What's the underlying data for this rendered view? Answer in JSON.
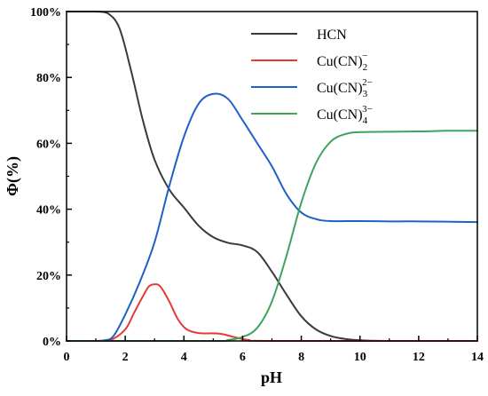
{
  "chart_data": {
    "type": "line",
    "xlabel": "pH",
    "ylabel": "Φ(%)",
    "xlim": [
      0,
      14
    ],
    "ylim": [
      0,
      100
    ],
    "x_ticks": [
      "0",
      "2",
      "4",
      "6",
      "8",
      "10",
      "12",
      "14"
    ],
    "y_ticks": [
      "0%",
      "20%",
      "40%",
      "60%",
      "80%",
      "100%"
    ],
    "grid": false,
    "legend_position": "top-right",
    "series": [
      {
        "name": "HCN",
        "name_base": "HCN",
        "name_sub": "",
        "name_sup": "",
        "color": "#3a3a3a",
        "points": [
          [
            0,
            100
          ],
          [
            1,
            100
          ],
          [
            1.4,
            99.5
          ],
          [
            1.8,
            95
          ],
          [
            2.2,
            82
          ],
          [
            2.6,
            67
          ],
          [
            3,
            55
          ],
          [
            3.5,
            46
          ],
          [
            4,
            40.5
          ],
          [
            4.5,
            35
          ],
          [
            5,
            31.5
          ],
          [
            5.5,
            29.8
          ],
          [
            6,
            29
          ],
          [
            6.5,
            27
          ],
          [
            7,
            21
          ],
          [
            7.5,
            14
          ],
          [
            8,
            7.5
          ],
          [
            8.5,
            3.5
          ],
          [
            9,
            1.5
          ],
          [
            9.5,
            0.6
          ],
          [
            10,
            0.2
          ],
          [
            11,
            0
          ],
          [
            14,
            0
          ]
        ]
      },
      {
        "name": "Cu(CN)2−",
        "name_base": "Cu(CN)",
        "name_sub": "2",
        "name_sup": "−",
        "color": "#e53935",
        "points": [
          [
            0,
            0
          ],
          [
            1,
            0
          ],
          [
            1.5,
            0.3
          ],
          [
            2,
            3.5
          ],
          [
            2.3,
            8.5
          ],
          [
            2.6,
            13.5
          ],
          [
            2.8,
            16.5
          ],
          [
            3,
            17.2
          ],
          [
            3.2,
            16.5
          ],
          [
            3.5,
            12
          ],
          [
            3.8,
            6.5
          ],
          [
            4.1,
            3.5
          ],
          [
            4.5,
            2.4
          ],
          [
            5,
            2.3
          ],
          [
            5.3,
            2.1
          ],
          [
            5.7,
            1.2
          ],
          [
            6.2,
            0.3
          ],
          [
            7,
            0
          ],
          [
            14,
            0
          ]
        ]
      },
      {
        "name": "Cu(CN)3 2−",
        "name_base": "Cu(CN)",
        "name_sub": "3",
        "name_sup": "2−",
        "color": "#1f60c8",
        "points": [
          [
            0,
            0
          ],
          [
            1,
            0
          ],
          [
            1.3,
            0.2
          ],
          [
            1.6,
            1.5
          ],
          [
            2,
            8
          ],
          [
            2.5,
            18
          ],
          [
            3,
            30
          ],
          [
            3.5,
            47
          ],
          [
            4,
            62
          ],
          [
            4.5,
            72
          ],
          [
            5,
            75
          ],
          [
            5.5,
            73.5
          ],
          [
            6,
            67
          ],
          [
            6.5,
            60
          ],
          [
            7,
            53
          ],
          [
            7.5,
            44.5
          ],
          [
            8,
            39
          ],
          [
            8.5,
            37
          ],
          [
            9,
            36.4
          ],
          [
            10,
            36.4
          ],
          [
            11,
            36.3
          ],
          [
            12,
            36.3
          ],
          [
            14,
            36.1
          ]
        ]
      },
      {
        "name": "Cu(CN)4 3−",
        "name_base": "Cu(CN)",
        "name_sub": "4",
        "name_sup": "3−",
        "color": "#3da35d",
        "points": [
          [
            0,
            0
          ],
          [
            5,
            0
          ],
          [
            5.5,
            0.3
          ],
          [
            6,
            1.2
          ],
          [
            6.5,
            4
          ],
          [
            7,
            12
          ],
          [
            7.5,
            26
          ],
          [
            8,
            42
          ],
          [
            8.5,
            54
          ],
          [
            9,
            60.5
          ],
          [
            9.5,
            62.8
          ],
          [
            10,
            63.4
          ],
          [
            11,
            63.5
          ],
          [
            12,
            63.6
          ],
          [
            13,
            63.8
          ],
          [
            14,
            63.8
          ]
        ]
      }
    ]
  }
}
